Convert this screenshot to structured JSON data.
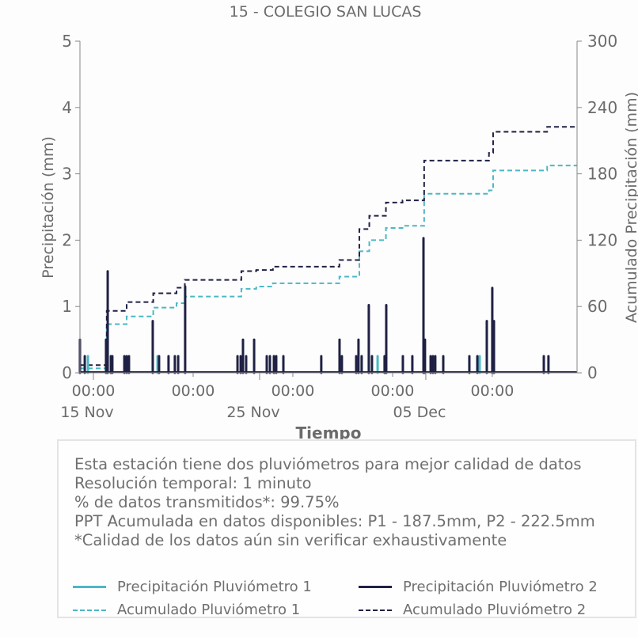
{
  "chart_data": {
    "type": "bar+line",
    "title": "15 - COLEGIO SAN LUCAS",
    "xlabel": "Tiempo",
    "ylabel": "Precipitación (mm)",
    "y2label": "Acumulado Precipitación (mm)",
    "x_units": "days since 15 Nov 00:00",
    "xlim": [
      -0.81,
      29.1
    ],
    "ylim": [
      0,
      5
    ],
    "y2lim": [
      0,
      300
    ],
    "yticks": [
      "0",
      "1",
      "2",
      "3",
      "4",
      "5"
    ],
    "y2ticks": [
      "0",
      "60",
      "120",
      "180",
      "240",
      "300"
    ],
    "xticks_time": [
      {
        "x": 0,
        "label": "00:00"
      },
      {
        "x": 6,
        "label": "00:00"
      },
      {
        "x": 12,
        "label": "00:00"
      },
      {
        "x": 18,
        "label": "00:00"
      },
      {
        "x": 24,
        "label": "00:00"
      }
    ],
    "xticks_date": [
      {
        "x": 0,
        "label": "15 Nov"
      },
      {
        "x": 10,
        "label": "25 Nov"
      },
      {
        "x": 20,
        "label": "05 Dec"
      }
    ],
    "colors": {
      "p1": "#4bb8c4",
      "p2": "#1f2144"
    },
    "series": [
      {
        "name": "Precipitación Pluviómetro 1",
        "kind": "bar",
        "color": "#4bb8c4",
        "points": [
          [
            -0.33,
            0.25
          ],
          [
            3.86,
            0.25
          ],
          [
            17.1,
            0.25
          ],
          [
            23.24,
            0.25
          ]
        ]
      },
      {
        "name": "Precipitación Pluviómetro 2",
        "kind": "bar",
        "color": "#1f2144",
        "points": [
          [
            -0.81,
            0.5
          ],
          [
            -0.52,
            0.25
          ],
          [
            0.76,
            0.5
          ],
          [
            0.86,
            1.53
          ],
          [
            1.05,
            0.25
          ],
          [
            1.14,
            0.25
          ],
          [
            1.86,
            0.25
          ],
          [
            2.0,
            0.25
          ],
          [
            2.14,
            0.25
          ],
          [
            3.57,
            0.78
          ],
          [
            3.95,
            0.25
          ],
          [
            4.52,
            0.25
          ],
          [
            4.9,
            0.25
          ],
          [
            5.1,
            0.25
          ],
          [
            5.52,
            1.3
          ],
          [
            8.67,
            0.25
          ],
          [
            8.86,
            0.25
          ],
          [
            9.0,
            0.5
          ],
          [
            9.19,
            0.25
          ],
          [
            9.67,
            0.5
          ],
          [
            10.43,
            0.25
          ],
          [
            10.62,
            0.25
          ],
          [
            10.86,
            0.25
          ],
          [
            11.0,
            0.25
          ],
          [
            11.43,
            0.25
          ],
          [
            13.71,
            0.25
          ],
          [
            14.81,
            0.5
          ],
          [
            14.95,
            0.25
          ],
          [
            15.81,
            0.25
          ],
          [
            15.95,
            0.5
          ],
          [
            16.14,
            0.25
          ],
          [
            16.57,
            1.02
          ],
          [
            16.76,
            0.25
          ],
          [
            17.52,
            0.25
          ],
          [
            17.62,
            1.02
          ],
          [
            18.62,
            0.25
          ],
          [
            19.19,
            0.25
          ],
          [
            19.86,
            2.03
          ],
          [
            19.95,
            0.5
          ],
          [
            20.29,
            0.25
          ],
          [
            20.43,
            0.25
          ],
          [
            20.57,
            0.25
          ],
          [
            21.05,
            0.25
          ],
          [
            22.62,
            0.25
          ],
          [
            23.1,
            0.25
          ],
          [
            23.67,
            0.78
          ],
          [
            24.0,
            1.28
          ],
          [
            24.1,
            0.78
          ],
          [
            27.1,
            0.25
          ],
          [
            27.38,
            0.25
          ]
        ]
      },
      {
        "name": "Acumulado Pluviómetro 1",
        "kind": "step",
        "axis": "right",
        "color": "#4bb8c4",
        "points": [
          [
            -0.81,
            4
          ],
          [
            0.8,
            44
          ],
          [
            2.0,
            51
          ],
          [
            3.6,
            59
          ],
          [
            5.0,
            63
          ],
          [
            5.5,
            69
          ],
          [
            8.9,
            76
          ],
          [
            9.8,
            78
          ],
          [
            10.8,
            81
          ],
          [
            14.8,
            87
          ],
          [
            16.0,
            110
          ],
          [
            16.6,
            120
          ],
          [
            17.6,
            131
          ],
          [
            18.6,
            133
          ],
          [
            19.9,
            162
          ],
          [
            23.8,
            165
          ],
          [
            24.05,
            183
          ],
          [
            27.3,
            187.5
          ],
          [
            29.1,
            187.5
          ]
        ]
      },
      {
        "name": "Acumulado Pluviómetro 2",
        "kind": "step",
        "axis": "right",
        "color": "#1f2144",
        "points": [
          [
            -0.81,
            7
          ],
          [
            0.8,
            56
          ],
          [
            2.0,
            64
          ],
          [
            3.6,
            72
          ],
          [
            5.0,
            77
          ],
          [
            5.5,
            84
          ],
          [
            8.9,
            92
          ],
          [
            9.8,
            93
          ],
          [
            10.8,
            96
          ],
          [
            14.8,
            102
          ],
          [
            16.0,
            130
          ],
          [
            16.6,
            142
          ],
          [
            17.6,
            154
          ],
          [
            18.6,
            156
          ],
          [
            19.9,
            192
          ],
          [
            23.8,
            199
          ],
          [
            24.05,
            218
          ],
          [
            27.3,
            222.5
          ],
          [
            29.1,
            222.5
          ]
        ]
      }
    ]
  },
  "notes": [
    "Esta estación tiene dos pluviómetros para mejor calidad de datos",
    "Resolución temporal: 1 minuto",
    "% de datos transmitidos*: 99.75%",
    "PPT Acumulada en datos disponibles: P1 - 187.5mm, P2 - 222.5mm",
    "*Calidad de los datos aún sin verificar exhaustivamente"
  ],
  "legend": {
    "p1": "Precipitación Pluviómetro 1",
    "p2": "Precipitación Pluviómetro 2",
    "a1": "Acumulado Pluviómetro 1",
    "a2": "Acumulado Pluviómetro 2"
  }
}
